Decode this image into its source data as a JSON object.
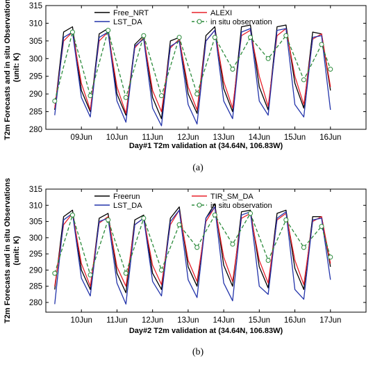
{
  "chart_data": [
    {
      "type": "line",
      "panel_label": "(a)",
      "xlabel": "Day#1 T2m validation at (34.64N, 106.83W)",
      "ylabel": [
        "T2m Forecasts and in situ Observations",
        "(unit: K)"
      ],
      "ylim": [
        280,
        315
      ],
      "yticks": [
        280,
        285,
        290,
        295,
        300,
        305,
        310,
        315
      ],
      "xlim": [
        0,
        9
      ],
      "xticks": [
        1,
        2,
        3,
        4,
        5,
        6,
        7,
        8
      ],
      "xtick_labels": [
        "09Jun",
        "10Jun",
        "11Jun",
        "12Jun",
        "13Jun",
        "14Jun",
        "15Jun",
        "16Jun"
      ],
      "legend_columns": 2,
      "series": [
        {
          "name": "Free_NRT",
          "color": "#000000",
          "dash": "solid",
          "marker": "none",
          "x": [
            0.25,
            0.5,
            0.75,
            1.0,
            1.25,
            1.5,
            1.75,
            2.0,
            2.25,
            2.5,
            2.75,
            3.0,
            3.25,
            3.5,
            3.75,
            4.0,
            4.25,
            4.5,
            4.75,
            5.0,
            5.25,
            5.5,
            5.75,
            6.0,
            6.25,
            6.5,
            6.75,
            7.0,
            7.25,
            7.5,
            7.75,
            8.0
          ],
          "values": [
            285.5,
            307.5,
            309.0,
            291.0,
            285.0,
            307.0,
            308.5,
            290.0,
            284.0,
            304.0,
            306.5,
            289.0,
            283.0,
            305.0,
            306.0,
            290.0,
            284.5,
            306.5,
            309.0,
            291.5,
            285.0,
            309.0,
            309.5,
            292.0,
            285.5,
            309.0,
            309.5,
            293.0,
            286.0,
            307.5,
            307.0,
            291.0
          ]
        },
        {
          "name": "ALEXI",
          "color": "#e8202a",
          "dash": "solid",
          "marker": "none",
          "x": [
            0.25,
            0.5,
            0.75,
            1.0,
            1.25,
            1.5,
            1.75,
            2.0,
            2.25,
            2.5,
            2.75,
            3.0,
            3.25,
            3.5,
            3.75,
            4.0,
            4.25,
            4.5,
            4.75,
            5.0,
            5.25,
            5.5,
            5.75,
            6.0,
            6.25,
            6.5,
            6.75,
            7.0,
            7.25,
            7.5,
            7.75,
            8.0
          ],
          "values": [
            286.0,
            305.0,
            307.5,
            293.0,
            285.5,
            305.0,
            307.5,
            292.0,
            284.5,
            303.0,
            306.0,
            291.0,
            285.0,
            303.0,
            305.5,
            292.0,
            285.5,
            305.0,
            308.0,
            293.5,
            286.0,
            306.5,
            308.0,
            295.0,
            286.5,
            306.5,
            308.5,
            295.0,
            287.0,
            305.5,
            307.0,
            292.0
          ]
        },
        {
          "name": "LST_DA",
          "color": "#2233aa",
          "dash": "solid",
          "marker": "none",
          "x": [
            0.25,
            0.5,
            0.75,
            1.0,
            1.25,
            1.5,
            1.75,
            2.0,
            2.25,
            2.5,
            2.75,
            3.0,
            3.25,
            3.5,
            3.75,
            4.0,
            4.25,
            4.5,
            4.75,
            5.0,
            5.25,
            5.5,
            5.75,
            6.0,
            6.25,
            6.5,
            6.75,
            7.0,
            7.25,
            7.5,
            7.75,
            8.0
          ],
          "values": [
            284.0,
            306.0,
            307.5,
            289.0,
            283.5,
            306.0,
            307.5,
            288.0,
            282.0,
            303.5,
            305.5,
            286.0,
            281.0,
            303.5,
            305.0,
            287.0,
            281.5,
            305.0,
            308.0,
            288.0,
            283.0,
            307.5,
            308.5,
            288.0,
            284.0,
            308.0,
            308.5,
            287.0,
            283.5,
            306.0,
            306.5,
            285.5
          ]
        },
        {
          "name": "in situ observation",
          "color": "#2a8a3a",
          "dash": "dashed",
          "marker": "open-circle",
          "x": [
            0.25,
            0.75,
            1.25,
            1.75,
            2.25,
            2.75,
            3.25,
            3.75,
            4.25,
            4.75,
            5.25,
            5.75,
            6.25,
            6.75,
            7.25,
            7.75,
            8.0
          ],
          "values": [
            288.0,
            307.5,
            289.5,
            308.0,
            289.0,
            306.5,
            289.5,
            306.0,
            290.0,
            306.0,
            297.0,
            306.0,
            300.0,
            306.5,
            294.0,
            304.0,
            297.0
          ]
        }
      ]
    },
    {
      "type": "line",
      "panel_label": "(b)",
      "xlabel": "Day#2 T2m validation at (34.64N, 106.83W)",
      "ylabel": [
        "T2m Forecasts and in situ Observations",
        "(unit: K)"
      ],
      "ylim": [
        277,
        315
      ],
      "yticks": [
        280,
        285,
        290,
        295,
        300,
        305,
        310,
        315
      ],
      "xlim": [
        0,
        9
      ],
      "xticks": [
        1,
        2,
        3,
        4,
        5,
        6,
        7,
        8
      ],
      "xtick_labels": [
        "10Jun",
        "11Jun",
        "12Jun",
        "13Jun",
        "14Jun",
        "15Jun",
        "16Jun",
        "17Jun"
      ],
      "legend_columns": 2,
      "series": [
        {
          "name": "Freerun",
          "color": "#000000",
          "dash": "solid",
          "marker": "none",
          "x": [
            0.25,
            0.5,
            0.75,
            1.0,
            1.25,
            1.5,
            1.75,
            2.0,
            2.25,
            2.5,
            2.75,
            3.0,
            3.25,
            3.5,
            3.75,
            4.0,
            4.25,
            4.5,
            4.75,
            5.0,
            5.25,
            5.5,
            5.75,
            6.0,
            6.25,
            6.5,
            6.75,
            7.0,
            7.25,
            7.5,
            7.75,
            8.0
          ],
          "values": [
            284.0,
            306.5,
            308.5,
            290.0,
            284.0,
            306.0,
            307.5,
            289.0,
            283.0,
            305.5,
            307.0,
            289.0,
            284.0,
            306.0,
            309.5,
            291.0,
            285.0,
            306.0,
            310.5,
            291.5,
            285.0,
            308.0,
            308.5,
            291.0,
            284.5,
            307.5,
            308.5,
            290.5,
            284.0,
            306.5,
            306.5,
            291.0
          ]
        },
        {
          "name": "TIR_SM_DA",
          "color": "#e8202a",
          "dash": "solid",
          "marker": "none",
          "x": [
            0.25,
            0.5,
            0.75,
            1.0,
            1.25,
            1.5,
            1.75,
            2.0,
            2.25,
            2.5,
            2.75,
            3.0,
            3.25,
            3.5,
            3.75,
            4.0,
            4.25,
            4.5,
            4.75,
            5.0,
            5.25,
            5.5,
            5.75,
            6.0,
            6.25,
            6.5,
            6.75,
            7.0,
            7.25,
            7.5,
            7.75,
            8.0
          ],
          "values": [
            285.0,
            304.0,
            307.5,
            292.0,
            285.0,
            304.5,
            306.5,
            291.0,
            285.0,
            304.0,
            306.0,
            291.5,
            285.5,
            304.0,
            308.5,
            293.0,
            286.5,
            305.0,
            309.5,
            294.0,
            286.5,
            306.0,
            307.5,
            293.0,
            286.0,
            305.5,
            307.5,
            293.0,
            285.5,
            305.0,
            306.5,
            292.0
          ]
        },
        {
          "name": "LST_DA",
          "color": "#2233aa",
          "dash": "solid",
          "marker": "none",
          "x": [
            0.25,
            0.5,
            0.75,
            1.0,
            1.25,
            1.5,
            1.75,
            2.0,
            2.25,
            2.5,
            2.75,
            3.0,
            3.25,
            3.5,
            3.75,
            4.0,
            4.25,
            4.5,
            4.75,
            5.0,
            5.25,
            5.5,
            5.75,
            6.0,
            6.25,
            6.5,
            6.75,
            7.0,
            7.25,
            7.5,
            7.75,
            8.0
          ],
          "values": [
            279.5,
            305.5,
            307.5,
            287.5,
            282.0,
            305.0,
            306.0,
            286.0,
            279.5,
            304.0,
            306.0,
            286.5,
            282.0,
            305.0,
            308.5,
            287.0,
            281.5,
            306.0,
            309.5,
            286.0,
            280.5,
            307.0,
            308.0,
            285.0,
            282.5,
            306.0,
            308.0,
            284.0,
            281.0,
            305.5,
            306.0,
            287.0
          ]
        },
        {
          "name": "in situ observation",
          "color": "#2a8a3a",
          "dash": "dashed",
          "marker": "open-circle",
          "x": [
            0.25,
            0.75,
            1.25,
            1.75,
            2.25,
            2.75,
            3.25,
            3.75,
            4.25,
            4.75,
            5.25,
            5.75,
            6.25,
            6.75,
            7.25,
            7.75,
            8.0
          ],
          "values": [
            289.0,
            307.0,
            288.5,
            305.5,
            289.0,
            306.0,
            290.0,
            304.0,
            297.0,
            307.0,
            298.0,
            307.5,
            293.0,
            305.5,
            297.0,
            303.5,
            294.0
          ]
        }
      ]
    }
  ]
}
